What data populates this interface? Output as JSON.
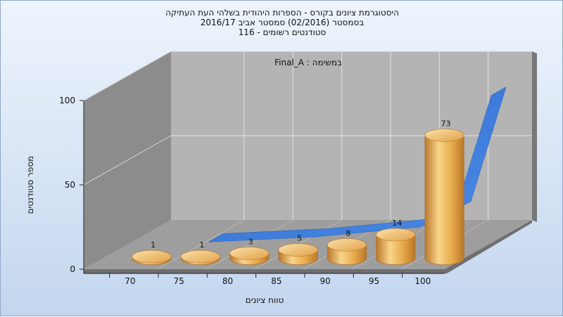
{
  "chart_data": {
    "type": "bar",
    "title_lines": [
      "היסטוגרמת ציונים בקורס - הספרות היהודית בשלהי העת העתיקה",
      "בסמסטר  (02/2016)  סמסטר אביב 2016/17",
      "סטודנטים רשומים - 116"
    ],
    "subtitle": "Final_A : במשימה",
    "xlabel": "טווח ציונים",
    "ylabel": "מספר סטודנטים",
    "categories": [
      "70",
      "75",
      "80",
      "85",
      "90",
      "95",
      "100"
    ],
    "values": [
      1,
      1,
      3,
      5,
      8,
      14,
      73
    ],
    "data_labels": [
      "1",
      "1",
      "3",
      "5",
      "8",
      "14",
      "73"
    ],
    "y_ticks": [
      "0",
      "50",
      "100"
    ],
    "ylim": [
      0,
      100
    ],
    "grid": true,
    "overlay_series": {
      "type": "area-ribbon",
      "color": "#3a78d6"
    },
    "colors": {
      "bar_light": "#f8d58a",
      "bar_mid": "#e6a84a",
      "bar_dark": "#b9782a",
      "back_wall": "#b4b4b4",
      "side_wall": "#8c8c8c",
      "floor": "#9e9e9e"
    }
  }
}
